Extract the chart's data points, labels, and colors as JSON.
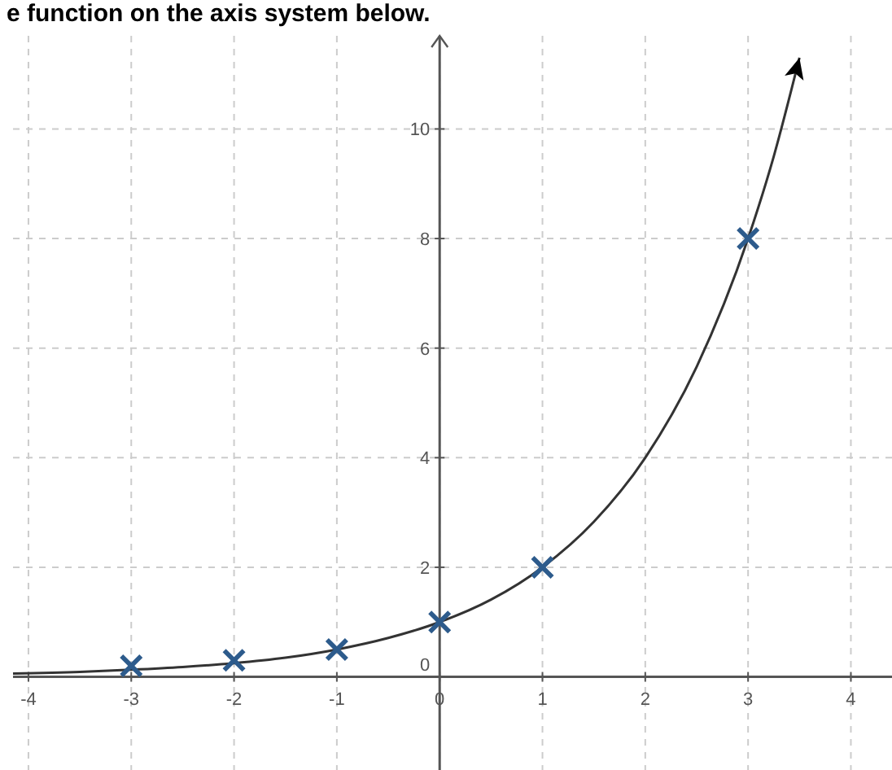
{
  "chart_data": {
    "type": "line",
    "title": "e function on the axis system below.",
    "xlim": [
      -4.15,
      4.4
    ],
    "ylim": [
      -1.7,
      11.7
    ],
    "xticks": [
      -4,
      -3,
      -2,
      -1,
      0,
      1,
      2,
      3,
      4
    ],
    "yticks": [
      0,
      2,
      4,
      6,
      8,
      10
    ],
    "grid": true,
    "series": [
      {
        "color": "#333333",
        "marker": "none",
        "line_style": "solid",
        "x": [
          -4.15,
          -3.5,
          -3,
          -2.5,
          -2,
          -1.5,
          -1,
          -0.5,
          0,
          0.5,
          1,
          1.5,
          2,
          2.5,
          3,
          3.25,
          3.5
        ],
        "values": [
          0.06,
          0.09,
          0.13,
          0.18,
          0.25,
          0.35,
          0.5,
          0.71,
          1,
          1.41,
          2,
          2.83,
          4,
          5.66,
          8,
          9.5,
          11.3
        ]
      },
      {
        "type": "scatter",
        "color": "#2d5b8c",
        "marker": "cross",
        "x": [
          -3,
          -2,
          -1,
          0,
          1,
          3
        ],
        "values": [
          0.2,
          0.3,
          0.5,
          1,
          2,
          8
        ]
      }
    ]
  }
}
